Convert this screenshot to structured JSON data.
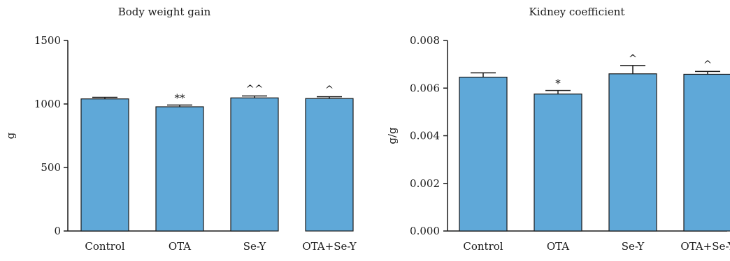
{
  "colors": {
    "bar": "#5fa8d8",
    "stroke": "#1a1a1a"
  },
  "chart_data": [
    {
      "type": "bar",
      "title": "Body weight gain",
      "ylabel": "g",
      "xlabel": "",
      "categories": [
        "Control",
        "OTA",
        "Se-Y",
        "OTA+Se-Y"
      ],
      "values": [
        1040,
        978,
        1048,
        1043
      ],
      "errors": [
        12,
        14,
        15,
        14
      ],
      "annotations": [
        "",
        "**",
        "^^",
        "^"
      ],
      "ylim": [
        0,
        1500
      ],
      "yticks": [
        0,
        500,
        1000,
        1500
      ],
      "ytick_labels": [
        "0",
        "500",
        "1000",
        "1500"
      ],
      "grid": false
    },
    {
      "type": "bar",
      "title": "Kidney coefficient",
      "ylabel": "g/g",
      "xlabel": "",
      "categories": [
        "Control",
        "OTA",
        "Se-Y",
        "OTA+Se-Y"
      ],
      "values": [
        0.00646,
        0.00575,
        0.0066,
        0.00658
      ],
      "errors": [
        0.00018,
        0.00015,
        0.00035,
        0.00012
      ],
      "annotations": [
        "",
        "*",
        "^",
        "^"
      ],
      "ylim": [
        0,
        0.008
      ],
      "yticks": [
        0,
        0.002,
        0.004,
        0.006,
        0.008
      ],
      "ytick_labels": [
        "0.000",
        "0.002",
        "0.004",
        "0.006",
        "0.008"
      ],
      "grid": false
    }
  ]
}
